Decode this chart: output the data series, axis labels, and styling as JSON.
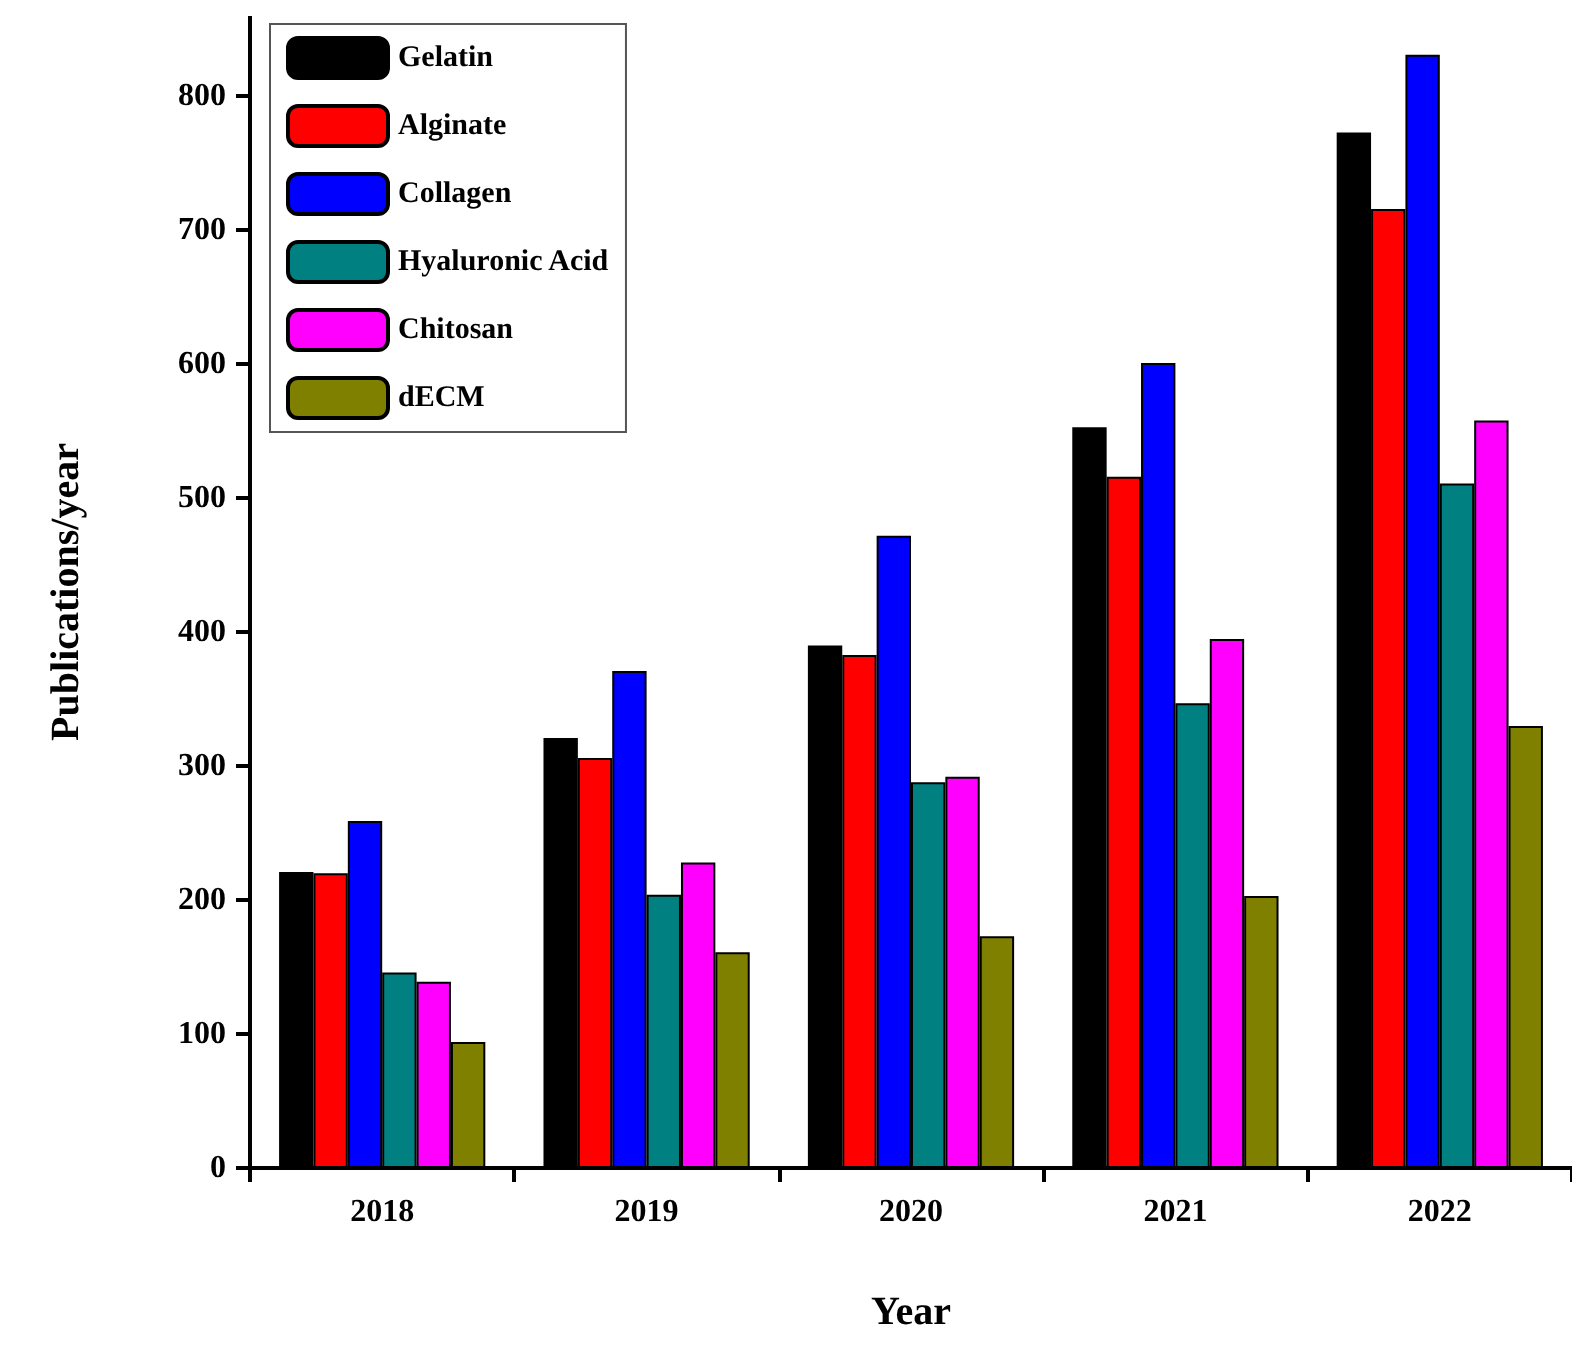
{
  "chart_data": {
    "type": "bar",
    "xlabel": "Year",
    "ylabel": "Publications/year",
    "categories": [
      "2018",
      "2019",
      "2020",
      "2021",
      "2022"
    ],
    "series": [
      {
        "name": "Gelatin",
        "color": "#000000",
        "values": [
          221,
          321,
          390,
          553,
          773
        ]
      },
      {
        "name": "Alginate",
        "color": "#ff0000",
        "values": [
          220,
          306,
          383,
          516,
          716
        ]
      },
      {
        "name": "Collagen",
        "color": "#0000ff",
        "values": [
          259,
          371,
          472,
          601,
          831
        ]
      },
      {
        "name": "Hyaluronic Acid",
        "color": "#008080",
        "values": [
          146,
          204,
          288,
          347,
          511
        ]
      },
      {
        "name": "Chitosan",
        "color": "#ff00ff",
        "values": [
          139,
          228,
          292,
          395,
          558
        ]
      },
      {
        "name": "dECM",
        "color": "#808000",
        "values": [
          94,
          161,
          173,
          203,
          330
        ]
      }
    ],
    "ylim": [
      0,
      860
    ],
    "yticks": [
      0,
      100,
      200,
      300,
      400,
      500,
      600,
      700,
      800
    ],
    "grid": false,
    "legend": "top left"
  }
}
